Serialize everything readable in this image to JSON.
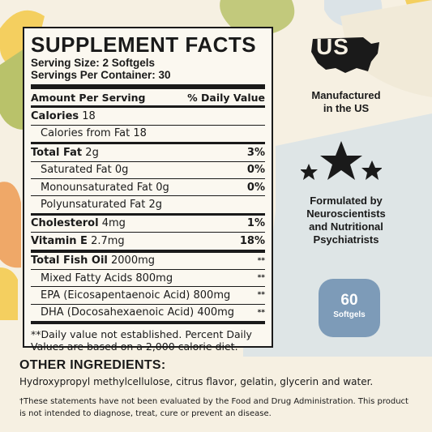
{
  "colors": {
    "background": "#f6f0e2",
    "panel": "#fbf8f0",
    "badge": "#7d9bb8",
    "blob_yellow": "#f4cf5f",
    "blob_green": "#b9c26a",
    "blob_orange": "#efa868",
    "blob_blue": "#dbe3e7"
  },
  "facts": {
    "title": "SUPPLEMENT FACTS",
    "serving_size": "Serving Size: 2 Softgels",
    "servings_per_container": "Servings Per Container: 30",
    "header": {
      "amount": "Amount Per Serving",
      "dv": "% Daily Value"
    },
    "calories": {
      "label": "Calories",
      "value": "18"
    },
    "calories_fat": "Calories from Fat 18",
    "total_fat": {
      "label": "Total Fat",
      "value": "2g",
      "dv": "3%"
    },
    "sat_fat": {
      "label": "Saturated Fat",
      "value": "0g",
      "dv": "0%"
    },
    "mono_fat": {
      "label": "Monounsaturated Fat",
      "value": "0g",
      "dv": "0%"
    },
    "poly_fat": "Polyunsaturated Fat 2g",
    "cholesterol": {
      "label": "Cholesterol",
      "value": "4mg",
      "dv": "1%"
    },
    "vitamin_e": {
      "label": "Vitamin E",
      "value": "2.7mg",
      "dv": "18%"
    },
    "fish_oil": {
      "label": "Total Fish Oil",
      "value": "2000mg",
      "dv": "**"
    },
    "mixed_fatty": {
      "text": "Mixed Fatty Acids 800mg",
      "dv": "**"
    },
    "epa": {
      "text": "EPA (Eicosapentaenoic Acid) 800mg",
      "dv": "**"
    },
    "dha": {
      "text": "DHA (Docosahexaenoic Acid) 400mg",
      "dv": "**"
    },
    "note": "**Daily value not established. Percent Daily Values are based on a 2,000 calorie diet."
  },
  "features": {
    "us_icon_text": "US",
    "manufactured_line1": "Manufactured",
    "manufactured_line2": "in the US",
    "formulated_line1": "Formulated by",
    "formulated_line2": "Neuroscientists",
    "formulated_line3": "and Nutritional",
    "formulated_line4": "Psychiatrists",
    "badge_count": "60",
    "badge_label": "Softgels"
  },
  "other": {
    "heading": "OTHER INGREDIENTS:",
    "ingredients": "Hydroxypropyl methylcellulose, citrus flavor, gelatin, glycerin and water."
  },
  "disclaimer": "†These statements have not been evaluated by the Food and Drug Administration. This product is not intended to diagnose, treat, cure or prevent an disease."
}
